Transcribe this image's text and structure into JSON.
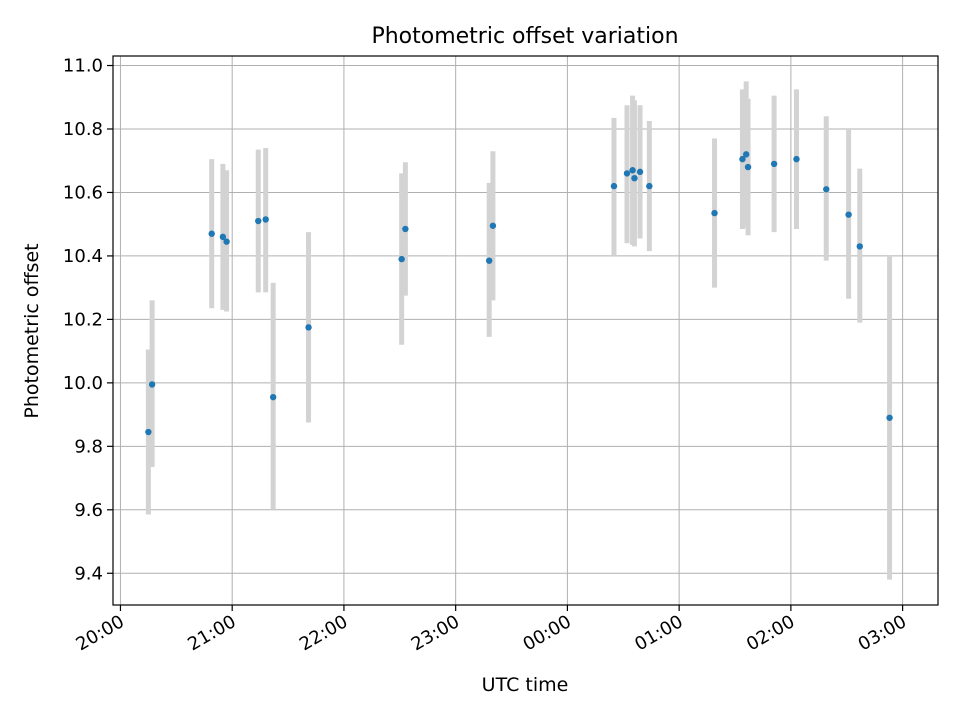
{
  "chart_data": {
    "type": "scatter",
    "title": "Photometric offset variation",
    "xlabel": "UTC time",
    "ylabel": "Photometric offset",
    "xlim": [
      "2023-01-01T19:56",
      "2023-01-02T03:19"
    ],
    "ylim": [
      9.3,
      11.03
    ],
    "grid": true,
    "colors": {
      "points": "#1f77b4",
      "errorbars": "#d3d3d3",
      "grid": "#b0b0b0"
    },
    "x_ticks": [
      {
        "t": "2023-01-01T20:00",
        "label": "20:00"
      },
      {
        "t": "2023-01-01T21:00",
        "label": "21:00"
      },
      {
        "t": "2023-01-01T22:00",
        "label": "22:00"
      },
      {
        "t": "2023-01-01T23:00",
        "label": "23:00"
      },
      {
        "t": "2023-01-02T00:00",
        "label": "00:00"
      },
      {
        "t": "2023-01-02T01:00",
        "label": "01:00"
      },
      {
        "t": "2023-01-02T02:00",
        "label": "02:00"
      },
      {
        "t": "2023-01-02T03:00",
        "label": "03:00"
      }
    ],
    "y_ticks": [
      {
        "v": 9.4,
        "label": "9.4"
      },
      {
        "v": 9.6,
        "label": "9.6"
      },
      {
        "v": 9.8,
        "label": "9.8"
      },
      {
        "v": 10.0,
        "label": "10.0"
      },
      {
        "v": 10.2,
        "label": "10.2"
      },
      {
        "v": 10.4,
        "label": "10.4"
      },
      {
        "v": 10.6,
        "label": "10.6"
      },
      {
        "v": 10.8,
        "label": "10.8"
      },
      {
        "v": 11.0,
        "label": "11.0"
      }
    ],
    "points": [
      {
        "t": "2023-01-01T20:15",
        "y": 9.845,
        "lo": 9.585,
        "hi": 10.105
      },
      {
        "t": "2023-01-01T20:17",
        "y": 9.995,
        "lo": 9.735,
        "hi": 10.26
      },
      {
        "t": "2023-01-01T20:49",
        "y": 10.47,
        "lo": 10.235,
        "hi": 10.705
      },
      {
        "t": "2023-01-01T20:55",
        "y": 10.46,
        "lo": 10.23,
        "hi": 10.69
      },
      {
        "t": "2023-01-01T20:57",
        "y": 10.445,
        "lo": 10.225,
        "hi": 10.67
      },
      {
        "t": "2023-01-01T21:14",
        "y": 10.51,
        "lo": 10.285,
        "hi": 10.735
      },
      {
        "t": "2023-01-01T21:18",
        "y": 10.515,
        "lo": 10.285,
        "hi": 10.74
      },
      {
        "t": "2023-01-01T21:22",
        "y": 9.955,
        "lo": 9.6,
        "hi": 10.315
      },
      {
        "t": "2023-01-01T21:41",
        "y": 10.175,
        "lo": 9.875,
        "hi": 10.475
      },
      {
        "t": "2023-01-01T22:31",
        "y": 10.39,
        "lo": 10.12,
        "hi": 10.66
      },
      {
        "t": "2023-01-01T22:33",
        "y": 10.485,
        "lo": 10.275,
        "hi": 10.695
      },
      {
        "t": "2023-01-01T23:18",
        "y": 10.385,
        "lo": 10.145,
        "hi": 10.63
      },
      {
        "t": "2023-01-01T23:20",
        "y": 10.495,
        "lo": 10.26,
        "hi": 10.73
      },
      {
        "t": "2023-01-02T00:25",
        "y": 10.62,
        "lo": 10.4,
        "hi": 10.835
      },
      {
        "t": "2023-01-02T00:32",
        "y": 10.66,
        "lo": 10.44,
        "hi": 10.875
      },
      {
        "t": "2023-01-02T00:35",
        "y": 10.67,
        "lo": 10.435,
        "hi": 10.905
      },
      {
        "t": "2023-01-02T00:36",
        "y": 10.645,
        "lo": 10.43,
        "hi": 10.89
      },
      {
        "t": "2023-01-02T00:39",
        "y": 10.665,
        "lo": 10.455,
        "hi": 10.875
      },
      {
        "t": "2023-01-02T00:44",
        "y": 10.62,
        "lo": 10.415,
        "hi": 10.825
      },
      {
        "t": "2023-01-02T01:19",
        "y": 10.535,
        "lo": 10.3,
        "hi": 10.77
      },
      {
        "t": "2023-01-02T01:34",
        "y": 10.705,
        "lo": 10.485,
        "hi": 10.925
      },
      {
        "t": "2023-01-02T01:36",
        "y": 10.72,
        "lo": 10.49,
        "hi": 10.95
      },
      {
        "t": "2023-01-02T01:37",
        "y": 10.68,
        "lo": 10.465,
        "hi": 10.895
      },
      {
        "t": "2023-01-02T01:51",
        "y": 10.69,
        "lo": 10.475,
        "hi": 10.905
      },
      {
        "t": "2023-01-02T02:03",
        "y": 10.705,
        "lo": 10.485,
        "hi": 10.925
      },
      {
        "t": "2023-01-02T02:19",
        "y": 10.61,
        "lo": 10.385,
        "hi": 10.84
      },
      {
        "t": "2023-01-02T02:31",
        "y": 10.53,
        "lo": 10.265,
        "hi": 10.8
      },
      {
        "t": "2023-01-02T02:37",
        "y": 10.43,
        "lo": 10.19,
        "hi": 10.675
      },
      {
        "t": "2023-01-02T02:53",
        "y": 9.89,
        "lo": 9.38,
        "hi": 10.4
      }
    ]
  }
}
